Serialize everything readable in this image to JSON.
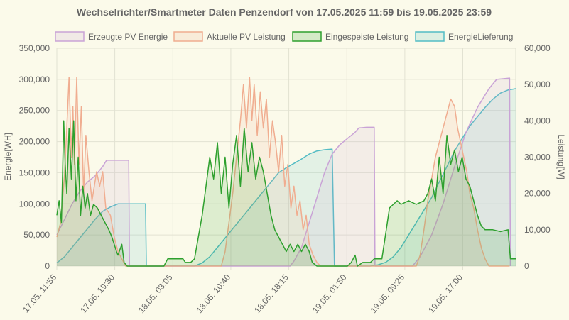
{
  "chart_data": {
    "type": "line",
    "title": "Wechselrichter/Smartmeter Daten Penzendorf von 17.05.2025 11:59 bis 19.05.2025 23:59",
    "ylabel_left": "Energie[WH]",
    "ylabel_right": "Leistung[W]",
    "ylim_left": [
      0,
      350000
    ],
    "ylim_right": [
      0,
      60000
    ],
    "yticks_left": [
      "350,000",
      "300,000",
      "250,000",
      "200,000",
      "150,000",
      "100,000",
      "50,000",
      "0"
    ],
    "yticks_right": [
      "60,000",
      "50,000",
      "40,000",
      "30,000",
      "20,000",
      "10,000",
      "0"
    ],
    "x_unit": "hours since first tick label",
    "xlim": [
      0,
      60
    ],
    "x_ticks": [
      {
        "label": "17.05. 11:55",
        "x": 0
      },
      {
        "label": "17.05. 19:30",
        "x": 7.58
      },
      {
        "label": "18.05. 03:05",
        "x": 15.17
      },
      {
        "label": "18.05. 10:40",
        "x": 22.75
      },
      {
        "label": "18.05. 18:15",
        "x": 30.33
      },
      {
        "label": "19.05. 01:50",
        "x": 37.92
      },
      {
        "label": "19.05. 09:25",
        "x": 45.5
      },
      {
        "label": "19.05. 17:00",
        "x": 53.08
      }
    ],
    "legend_position": "top",
    "grid": true,
    "series": [
      {
        "name": "Erzeugte PV Energie",
        "axis": "left",
        "color": "#c9a3d6",
        "points": [
          [
            0,
            50000
          ],
          [
            1,
            75000
          ],
          [
            2,
            100000
          ],
          [
            3,
            120000
          ],
          [
            4,
            135000
          ],
          [
            5,
            145000
          ],
          [
            6,
            160000
          ],
          [
            6.5,
            170000
          ],
          [
            9.4,
            170000
          ],
          [
            9.5,
            0
          ],
          [
            30.5,
            0
          ],
          [
            31,
            8000
          ],
          [
            32,
            30000
          ],
          [
            33,
            70000
          ],
          [
            34,
            110000
          ],
          [
            35,
            150000
          ],
          [
            36,
            180000
          ],
          [
            37,
            195000
          ],
          [
            38,
            205000
          ],
          [
            39,
            215000
          ],
          [
            39.5,
            222000
          ],
          [
            40.5,
            223000
          ],
          [
            41.5,
            223000
          ],
          [
            41.6,
            0
          ],
          [
            46.5,
            0
          ],
          [
            47.5,
            15000
          ],
          [
            49,
            50000
          ],
          [
            50.5,
            100000
          ],
          [
            52,
            160000
          ],
          [
            53.5,
            215000
          ],
          [
            55,
            255000
          ],
          [
            56.5,
            285000
          ],
          [
            57.5,
            300000
          ],
          [
            59.2,
            302000
          ],
          [
            59.3,
            0
          ]
        ]
      },
      {
        "name": "Aktuelle PV Leistung",
        "axis": "right",
        "color": "#f0ad90",
        "points": [
          [
            0,
            8000
          ],
          [
            0.5,
            12000
          ],
          [
            1,
            25000
          ],
          [
            1.3,
            38000
          ],
          [
            1.6,
            52000
          ],
          [
            1.9,
            30000
          ],
          [
            2.1,
            44000
          ],
          [
            2.3,
            28000
          ],
          [
            2.6,
            52000
          ],
          [
            2.9,
            28000
          ],
          [
            3.2,
            44000
          ],
          [
            3.5,
            20000
          ],
          [
            3.8,
            36000
          ],
          [
            4.2,
            26000
          ],
          [
            4.6,
            18000
          ],
          [
            5.2,
            26000
          ],
          [
            5.6,
            22000
          ],
          [
            6,
            26000
          ],
          [
            6.4,
            16000
          ],
          [
            7,
            14000
          ],
          [
            7.5,
            8000
          ],
          [
            8,
            4000
          ],
          [
            8.5,
            2000
          ],
          [
            9,
            0
          ],
          [
            9.4,
            0
          ],
          [
            21.5,
            0
          ],
          [
            22,
            4000
          ],
          [
            22.5,
            12000
          ],
          [
            23,
            20000
          ],
          [
            23.5,
            30000
          ],
          [
            24,
            40000
          ],
          [
            24.4,
            50000
          ],
          [
            24.8,
            38000
          ],
          [
            25.2,
            52000
          ],
          [
            25.5,
            40000
          ],
          [
            25.8,
            50000
          ],
          [
            26.2,
            36000
          ],
          [
            26.6,
            48000
          ],
          [
            27,
            38000
          ],
          [
            27.4,
            46000
          ],
          [
            27.8,
            30000
          ],
          [
            28.2,
            40000
          ],
          [
            28.6,
            34000
          ],
          [
            29,
            26000
          ],
          [
            29.4,
            36000
          ],
          [
            29.8,
            22000
          ],
          [
            30.2,
            28000
          ],
          [
            30.6,
            16000
          ],
          [
            31,
            22000
          ],
          [
            31.4,
            14000
          ],
          [
            31.8,
            18000
          ],
          [
            32.2,
            10000
          ],
          [
            32.6,
            14000
          ],
          [
            33,
            6000
          ],
          [
            33.5,
            3000
          ],
          [
            34,
            1000
          ],
          [
            34.5,
            0
          ],
          [
            47,
            0
          ],
          [
            47.5,
            3000
          ],
          [
            48,
            10000
          ],
          [
            48.5,
            18000
          ],
          [
            49,
            24000
          ],
          [
            49.5,
            30000
          ],
          [
            50,
            34000
          ],
          [
            50.5,
            38000
          ],
          [
            51,
            42000
          ],
          [
            51.5,
            46000
          ],
          [
            52,
            44000
          ],
          [
            52.4,
            38000
          ],
          [
            52.8,
            34000
          ],
          [
            53.2,
            30000
          ],
          [
            53.6,
            26000
          ],
          [
            54,
            20000
          ],
          [
            54.5,
            16000
          ],
          [
            55,
            10000
          ],
          [
            55.5,
            5000
          ],
          [
            56,
            2000
          ],
          [
            56.5,
            0
          ],
          [
            59.2,
            0
          ]
        ]
      },
      {
        "name": "Eingespeiste Leistung",
        "axis": "right",
        "color": "#2ea02e",
        "points": [
          [
            0,
            14000
          ],
          [
            0.3,
            18000
          ],
          [
            0.6,
            12000
          ],
          [
            0.9,
            40000
          ],
          [
            1.1,
            28000
          ],
          [
            1.3,
            20000
          ],
          [
            1.6,
            38000
          ],
          [
            1.9,
            24000
          ],
          [
            2.2,
            40000
          ],
          [
            2.5,
            18000
          ],
          [
            2.8,
            30000
          ],
          [
            3.1,
            14000
          ],
          [
            3.4,
            22000
          ],
          [
            3.7,
            16000
          ],
          [
            4,
            20000
          ],
          [
            4.4,
            14000
          ],
          [
            4.8,
            17000
          ],
          [
            5.3,
            16000
          ],
          [
            5.8,
            14000
          ],
          [
            6.3,
            12000
          ],
          [
            6.8,
            10000
          ],
          [
            7.2,
            8000
          ],
          [
            7.5,
            6000
          ],
          [
            7.8,
            4000
          ],
          [
            8,
            3000
          ],
          [
            8.5,
            6000
          ],
          [
            8.8,
            1000
          ],
          [
            9.2,
            0
          ],
          [
            14,
            0
          ],
          [
            14.5,
            2000
          ],
          [
            16.5,
            2000
          ],
          [
            16.8,
            1000
          ],
          [
            17.5,
            1000
          ],
          [
            18,
            2000
          ],
          [
            18.5,
            8000
          ],
          [
            19,
            14000
          ],
          [
            19.5,
            22000
          ],
          [
            20,
            30000
          ],
          [
            20.5,
            24000
          ],
          [
            21,
            34000
          ],
          [
            21.5,
            20000
          ],
          [
            22,
            30000
          ],
          [
            22.5,
            16000
          ],
          [
            23,
            28000
          ],
          [
            23.5,
            36000
          ],
          [
            24,
            22000
          ],
          [
            24.5,
            38000
          ],
          [
            25,
            26000
          ],
          [
            25.5,
            34000
          ],
          [
            26,
            24000
          ],
          [
            26.5,
            30000
          ],
          [
            27,
            26000
          ],
          [
            27.5,
            20000
          ],
          [
            28,
            14000
          ],
          [
            28.5,
            10000
          ],
          [
            29,
            8000
          ],
          [
            29.5,
            6000
          ],
          [
            30,
            4000
          ],
          [
            30.5,
            6000
          ],
          [
            31,
            4000
          ],
          [
            31.5,
            6000
          ],
          [
            32,
            4000
          ],
          [
            32.5,
            6000
          ],
          [
            33,
            4000
          ],
          [
            33.4,
            1000
          ],
          [
            34,
            0
          ],
          [
            38,
            0
          ],
          [
            38.5,
            1000
          ],
          [
            39,
            3000
          ],
          [
            39.3,
            0
          ],
          [
            40,
            1000
          ],
          [
            41,
            1000
          ],
          [
            41.5,
            2000
          ],
          [
            42.5,
            2000
          ],
          [
            43,
            9000
          ],
          [
            43.5,
            16000
          ],
          [
            44,
            17000
          ],
          [
            44.5,
            18000
          ],
          [
            45,
            17000
          ],
          [
            46,
            18000
          ],
          [
            47,
            17000
          ],
          [
            48,
            18000
          ],
          [
            48.5,
            20000
          ],
          [
            49,
            24000
          ],
          [
            49.5,
            18000
          ],
          [
            50,
            30000
          ],
          [
            50.5,
            20000
          ],
          [
            51,
            36000
          ],
          [
            51.5,
            28000
          ],
          [
            52,
            32000
          ],
          [
            52.5,
            26000
          ],
          [
            53,
            30000
          ],
          [
            53.5,
            24000
          ],
          [
            54,
            22000
          ],
          [
            54.5,
            18000
          ],
          [
            55,
            14000
          ],
          [
            55.5,
            11000
          ],
          [
            56,
            10000
          ],
          [
            57,
            10000
          ],
          [
            58,
            9500
          ],
          [
            59,
            10000
          ],
          [
            59.3,
            2000
          ],
          [
            60,
            2000
          ]
        ]
      },
      {
        "name": "EnergieLieferung",
        "axis": "left",
        "color": "#53bcc4",
        "points": [
          [
            0,
            5000
          ],
          [
            1,
            15000
          ],
          [
            2,
            30000
          ],
          [
            3,
            45000
          ],
          [
            4,
            60000
          ],
          [
            5,
            75000
          ],
          [
            6,
            88000
          ],
          [
            7,
            95000
          ],
          [
            8,
            100000
          ],
          [
            9.5,
            100000
          ],
          [
            11.6,
            100000
          ],
          [
            11.7,
            0
          ],
          [
            18,
            0
          ],
          [
            19,
            5000
          ],
          [
            20,
            15000
          ],
          [
            21,
            30000
          ],
          [
            22,
            45000
          ],
          [
            23,
            60000
          ],
          [
            24,
            75000
          ],
          [
            25,
            90000
          ],
          [
            26,
            105000
          ],
          [
            27,
            120000
          ],
          [
            28,
            135000
          ],
          [
            29,
            150000
          ],
          [
            30,
            158000
          ],
          [
            31,
            165000
          ],
          [
            32,
            172000
          ],
          [
            33,
            180000
          ],
          [
            34,
            185000
          ],
          [
            35,
            187000
          ],
          [
            36,
            188000
          ],
          [
            36.3,
            0
          ],
          [
            41,
            0
          ],
          [
            42,
            2000
          ],
          [
            43,
            6000
          ],
          [
            44,
            15000
          ],
          [
            45,
            30000
          ],
          [
            46,
            50000
          ],
          [
            47,
            70000
          ],
          [
            48,
            90000
          ],
          [
            49,
            110000
          ],
          [
            50,
            135000
          ],
          [
            51,
            160000
          ],
          [
            52,
            185000
          ],
          [
            53,
            205000
          ],
          [
            54,
            225000
          ],
          [
            55,
            240000
          ],
          [
            56,
            255000
          ],
          [
            57,
            268000
          ],
          [
            58,
            278000
          ],
          [
            59,
            283000
          ],
          [
            60,
            285000
          ]
        ]
      }
    ]
  }
}
